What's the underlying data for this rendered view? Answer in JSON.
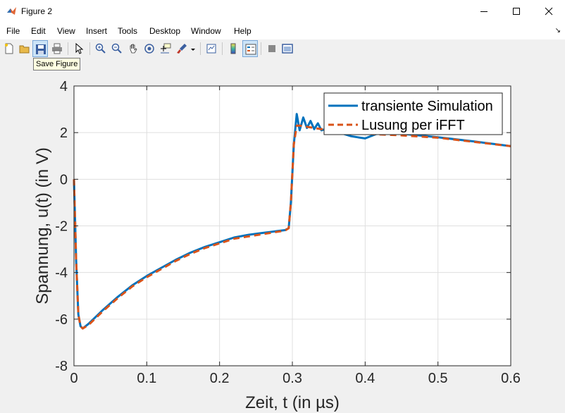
{
  "window": {
    "title": "Figure 2"
  },
  "menu": [
    "File",
    "Edit",
    "View",
    "Insert",
    "Tools",
    "Desktop",
    "Window",
    "Help"
  ],
  "toolbar": {
    "tooltip": "Save Figure",
    "buttons": [
      "new-figure",
      "open-file",
      "save-figure",
      "print-figure",
      "edit-plot",
      "zoom-in",
      "zoom-out",
      "pan",
      "rotate-3d",
      "data-cursor",
      "brush",
      "link-plot",
      "insert-colorbar",
      "insert-legend",
      "hide-plot-tools",
      "show-plot-tools"
    ]
  },
  "colors": {
    "series1": "#0072BD",
    "series2": "#D95319"
  },
  "chart_data": {
    "type": "line",
    "title": "",
    "xlabel": "Zeit, t (in µs)",
    "ylabel": "Spannung, u(t) (in V)",
    "xlim": [
      0,
      0.6
    ],
    "ylim": [
      -8,
      4
    ],
    "xticks": [
      0,
      0.1,
      0.2,
      0.3,
      0.4,
      0.5,
      0.6
    ],
    "xtick_labels": [
      "0",
      "0.1",
      "0.2",
      "0.3",
      "0.4",
      "0.5",
      "0.6"
    ],
    "yticks": [
      -8,
      -6,
      -4,
      -2,
      0,
      2,
      4
    ],
    "ytick_labels": [
      "-8",
      "-6",
      "-4",
      "-2",
      "0",
      "2",
      "4"
    ],
    "grid": true,
    "legend_position": "top-right",
    "series": [
      {
        "name": "transiente Simulation",
        "style": "solid",
        "x": [
          0,
          0.003,
          0.006,
          0.009,
          0.012,
          0.02,
          0.04,
          0.06,
          0.08,
          0.1,
          0.12,
          0.14,
          0.16,
          0.18,
          0.2,
          0.22,
          0.24,
          0.26,
          0.28,
          0.29,
          0.295,
          0.298,
          0.302,
          0.306,
          0.31,
          0.315,
          0.32,
          0.325,
          0.33,
          0.335,
          0.34,
          0.35,
          0.36,
          0.37,
          0.38,
          0.39,
          0.4,
          0.42,
          0.45,
          0.5,
          0.55,
          0.6
        ],
        "y": [
          0,
          -3.5,
          -5.8,
          -6.3,
          -6.4,
          -6.2,
          -5.6,
          -5.05,
          -4.55,
          -4.15,
          -3.8,
          -3.45,
          -3.15,
          -2.9,
          -2.7,
          -2.5,
          -2.38,
          -2.3,
          -2.22,
          -2.18,
          -2.1,
          -1.0,
          1.5,
          2.8,
          2.1,
          2.65,
          2.2,
          2.5,
          2.15,
          2.4,
          2.1,
          2.2,
          2.0,
          1.95,
          1.85,
          1.8,
          1.75,
          2.0,
          1.95,
          1.8,
          1.62,
          1.42
        ]
      },
      {
        "name": "Lusung per iFFT",
        "style": "dashed",
        "x": [
          0,
          0.003,
          0.006,
          0.009,
          0.012,
          0.02,
          0.04,
          0.06,
          0.08,
          0.1,
          0.12,
          0.14,
          0.16,
          0.18,
          0.2,
          0.22,
          0.24,
          0.26,
          0.28,
          0.29,
          0.295,
          0.298,
          0.302,
          0.306,
          0.31,
          0.32,
          0.33,
          0.35,
          0.38,
          0.4,
          0.42,
          0.45,
          0.5,
          0.55,
          0.6
        ],
        "y": [
          0,
          -3.5,
          -5.8,
          -6.3,
          -6.4,
          -6.25,
          -5.65,
          -5.1,
          -4.6,
          -4.2,
          -3.85,
          -3.5,
          -3.2,
          -2.95,
          -2.75,
          -2.55,
          -2.45,
          -2.35,
          -2.25,
          -2.2,
          -2.1,
          -1.0,
          1.5,
          2.3,
          2.3,
          2.25,
          2.2,
          2.1,
          2.0,
          1.95,
          1.92,
          1.88,
          1.78,
          1.6,
          1.42
        ]
      }
    ]
  }
}
